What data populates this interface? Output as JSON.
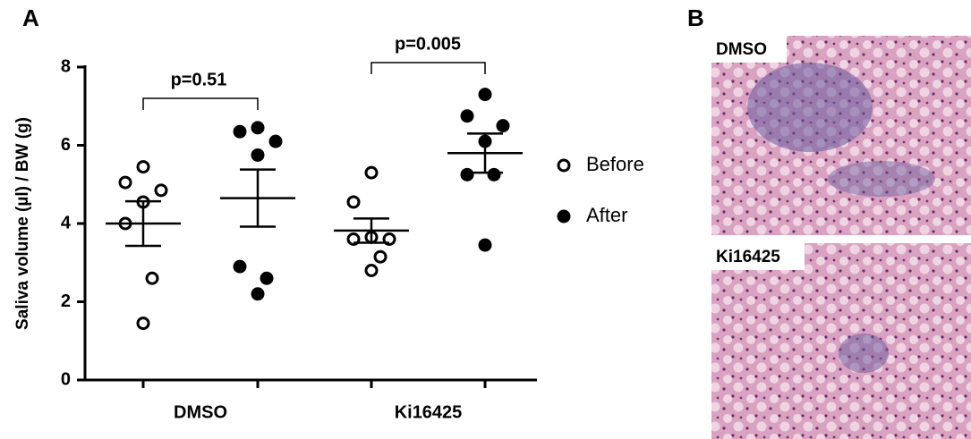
{
  "chart_data": {
    "type": "scatter",
    "y_label": "Saliva volume (µl) / BW (g)",
    "categories": [
      "DMSO",
      "Ki16425"
    ],
    "series": [
      {
        "name": "Before",
        "marker": "open",
        "color": "#000000",
        "values": [
          [
            5.45,
            5.05,
            4.85,
            4.55,
            4.0,
            2.6,
            1.45
          ],
          [
            5.3,
            4.55,
            3.6,
            3.65,
            3.6,
            3.15,
            2.8
          ]
        ],
        "mean": [
          4.0,
          3.82
        ],
        "sem": [
          0.57,
          0.31
        ]
      },
      {
        "name": "After",
        "marker": "filled",
        "color": "#000000",
        "values": [
          [
            6.45,
            6.35,
            6.1,
            5.75,
            2.9,
            2.6,
            2.2
          ],
          [
            7.3,
            6.75,
            6.5,
            6.1,
            5.25,
            5.25,
            3.45
          ]
        ],
        "mean": [
          4.65,
          5.8
        ],
        "sem": [
          0.73,
          0.5
        ]
      }
    ],
    "annotations": [
      "p=0.51",
      "p=0.005"
    ],
    "ylim": [
      0,
      8
    ],
    "yticks": [
      0,
      2,
      4,
      6,
      8
    ],
    "grid": false
  },
  "figure": {
    "panel_a": "A",
    "panel_b": "B",
    "images": [
      {
        "label": "DMSO"
      },
      {
        "label": "Ki16425"
      }
    ]
  }
}
